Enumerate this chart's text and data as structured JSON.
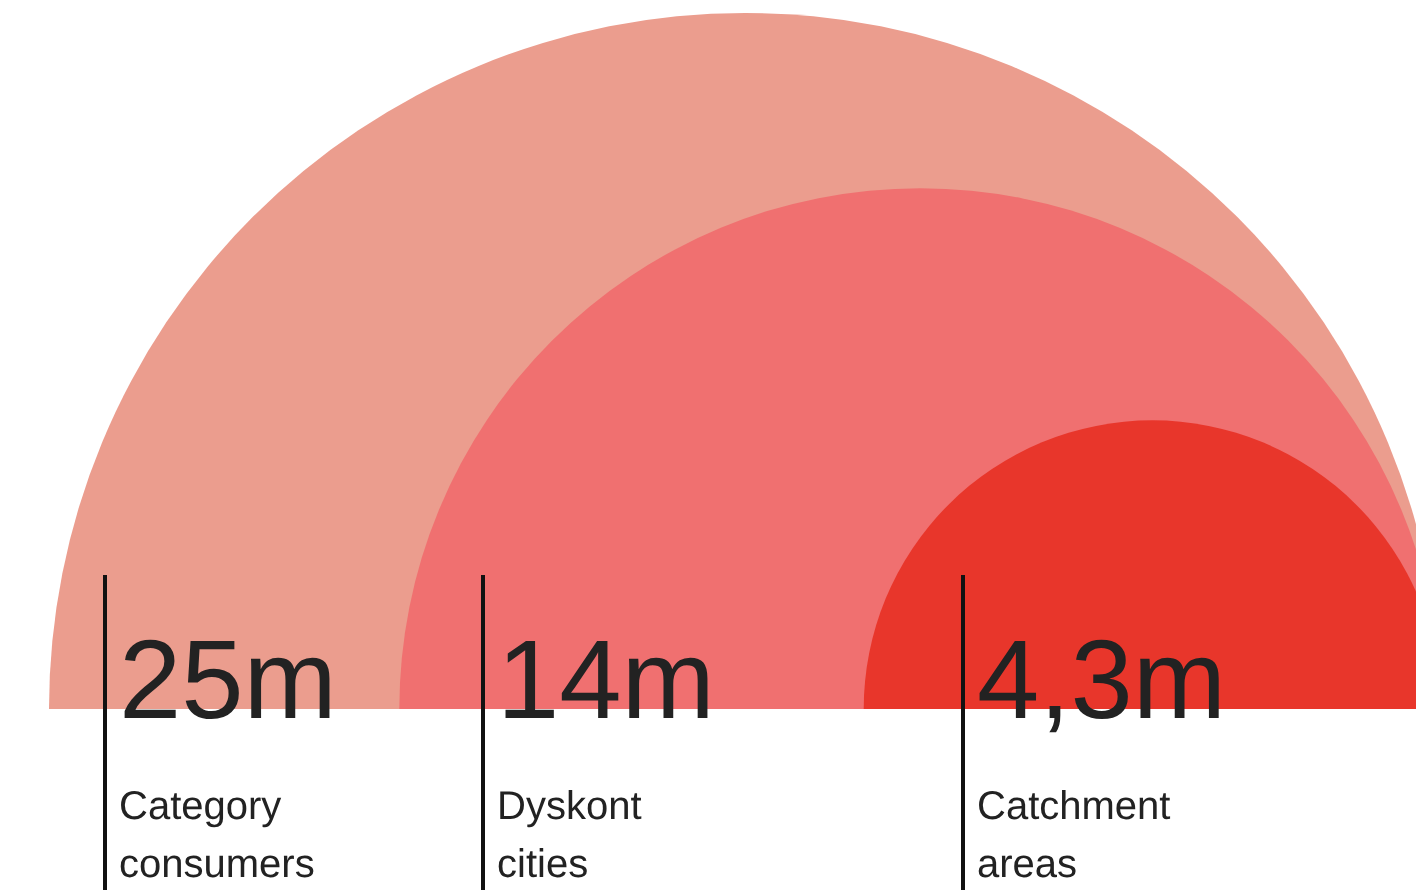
{
  "chart_data": {
    "type": "other",
    "categories": [
      "Category consumers",
      "Dyskont cities",
      "Catchment areas"
    ],
    "values": [
      25,
      14,
      4.3
    ],
    "value_labels": [
      "25m",
      "14m",
      "4,3m"
    ],
    "colors": [
      "#eb9d8e",
      "#f07070",
      "#e8362b"
    ]
  }
}
